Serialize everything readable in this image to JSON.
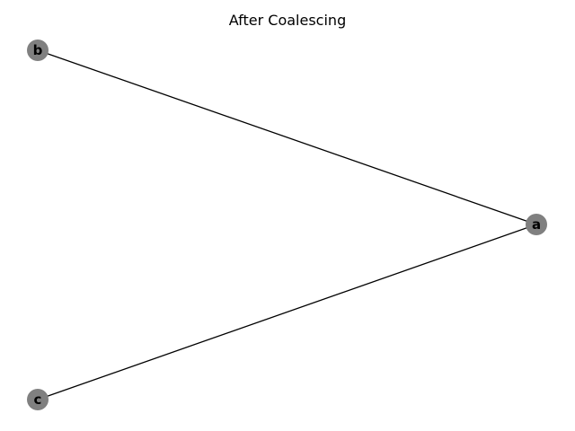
{
  "title": "After Coalescing",
  "colors": {
    "node_fill": "#808080",
    "edge": "#000000",
    "label": "#000000"
  },
  "graph": {
    "nodes": [
      {
        "id": "a",
        "label": "a"
      },
      {
        "id": "b",
        "label": "b"
      },
      {
        "id": "c",
        "label": "c"
      }
    ],
    "edges": [
      {
        "source": "b",
        "target": "a"
      },
      {
        "source": "c",
        "target": "a"
      }
    ]
  }
}
